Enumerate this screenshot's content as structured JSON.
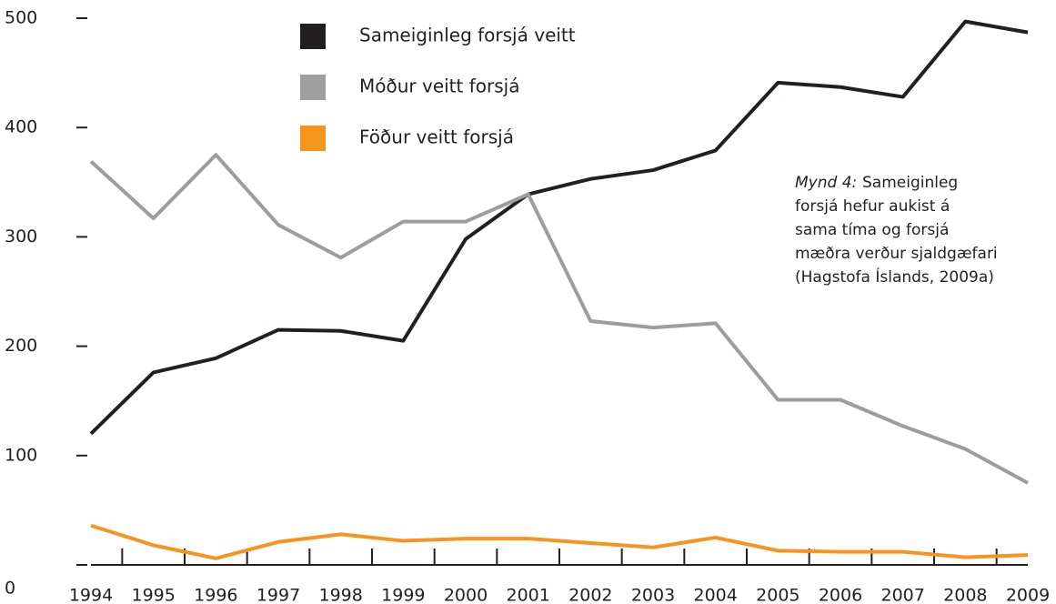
{
  "chart_data": {
    "type": "line",
    "categories": [
      "1994",
      "1995",
      "1996",
      "1997",
      "1998",
      "1999",
      "2000",
      "2001",
      "2002",
      "2003",
      "2004",
      "2005",
      "2006",
      "2007",
      "2008",
      "2009"
    ],
    "series": [
      {
        "name": "Sameiginleg forsjá veitt",
        "color": "#231f20",
        "values": [
          120,
          176,
          189,
          215,
          214,
          205,
          298,
          339,
          353,
          361,
          379,
          441,
          437,
          428,
          497,
          487
        ]
      },
      {
        "name": "Móður veitt forsjá",
        "color": "#9d9d9f",
        "values": [
          369,
          317,
          375,
          311,
          281,
          314,
          314,
          339,
          223,
          217,
          221,
          151,
          151,
          127,
          106,
          75
        ]
      },
      {
        "name": "Föður veitt forsjá",
        "color": "#f7941d",
        "values": [
          36,
          18,
          6,
          21,
          28,
          22,
          24,
          24,
          20,
          16,
          25,
          13,
          12,
          12,
          7,
          9
        ]
      }
    ],
    "ylim": [
      0,
      500
    ],
    "yticks": [
      0,
      100,
      200,
      300,
      400,
      500
    ],
    "annotation": {
      "label": "Mynd 4:",
      "lines": [
        "Sameiginleg",
        "forsjá hefur aukist á",
        "sama tíma og forsjá",
        "mæðra verður sjaldgæfari",
        "(Hagstofa Íslands, 2009a)"
      ]
    }
  }
}
